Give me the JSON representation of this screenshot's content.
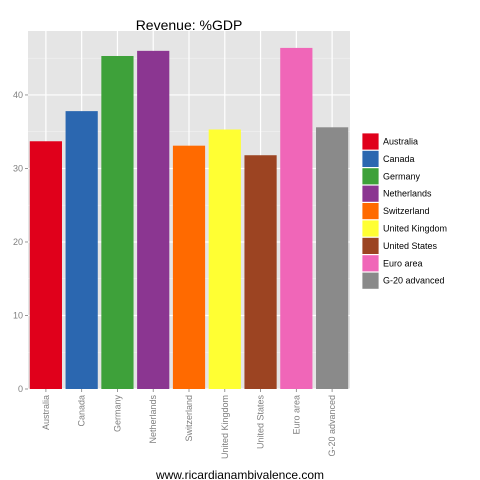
{
  "chart_data": {
    "type": "bar",
    "title": "Revenue: %GDP",
    "caption": "www.ricardianambivalence.com",
    "xlabel": "",
    "ylabel": "",
    "categories": [
      "Australia",
      "Canada",
      "Germany",
      "Netherlands",
      "Switzerland",
      "United Kingdom",
      "United States",
      "Euro area",
      "G-20 advanced"
    ],
    "values": [
      33.7,
      37.8,
      45.3,
      46.0,
      33.1,
      35.3,
      31.8,
      46.4,
      35.6
    ],
    "colors": [
      "#e0001b",
      "#2b67b0",
      "#3ea13a",
      "#8b3691",
      "#ff6a00",
      "#ffff33",
      "#9c4422",
      "#f066b8",
      "#8a8a8a"
    ],
    "ylim": [
      0,
      48.7
    ],
    "yticks": [
      0,
      10,
      20,
      30,
      40
    ],
    "grid": true,
    "legend_position": "right",
    "panel_background": "#e5e5e5",
    "grid_color": "#ffffff"
  }
}
